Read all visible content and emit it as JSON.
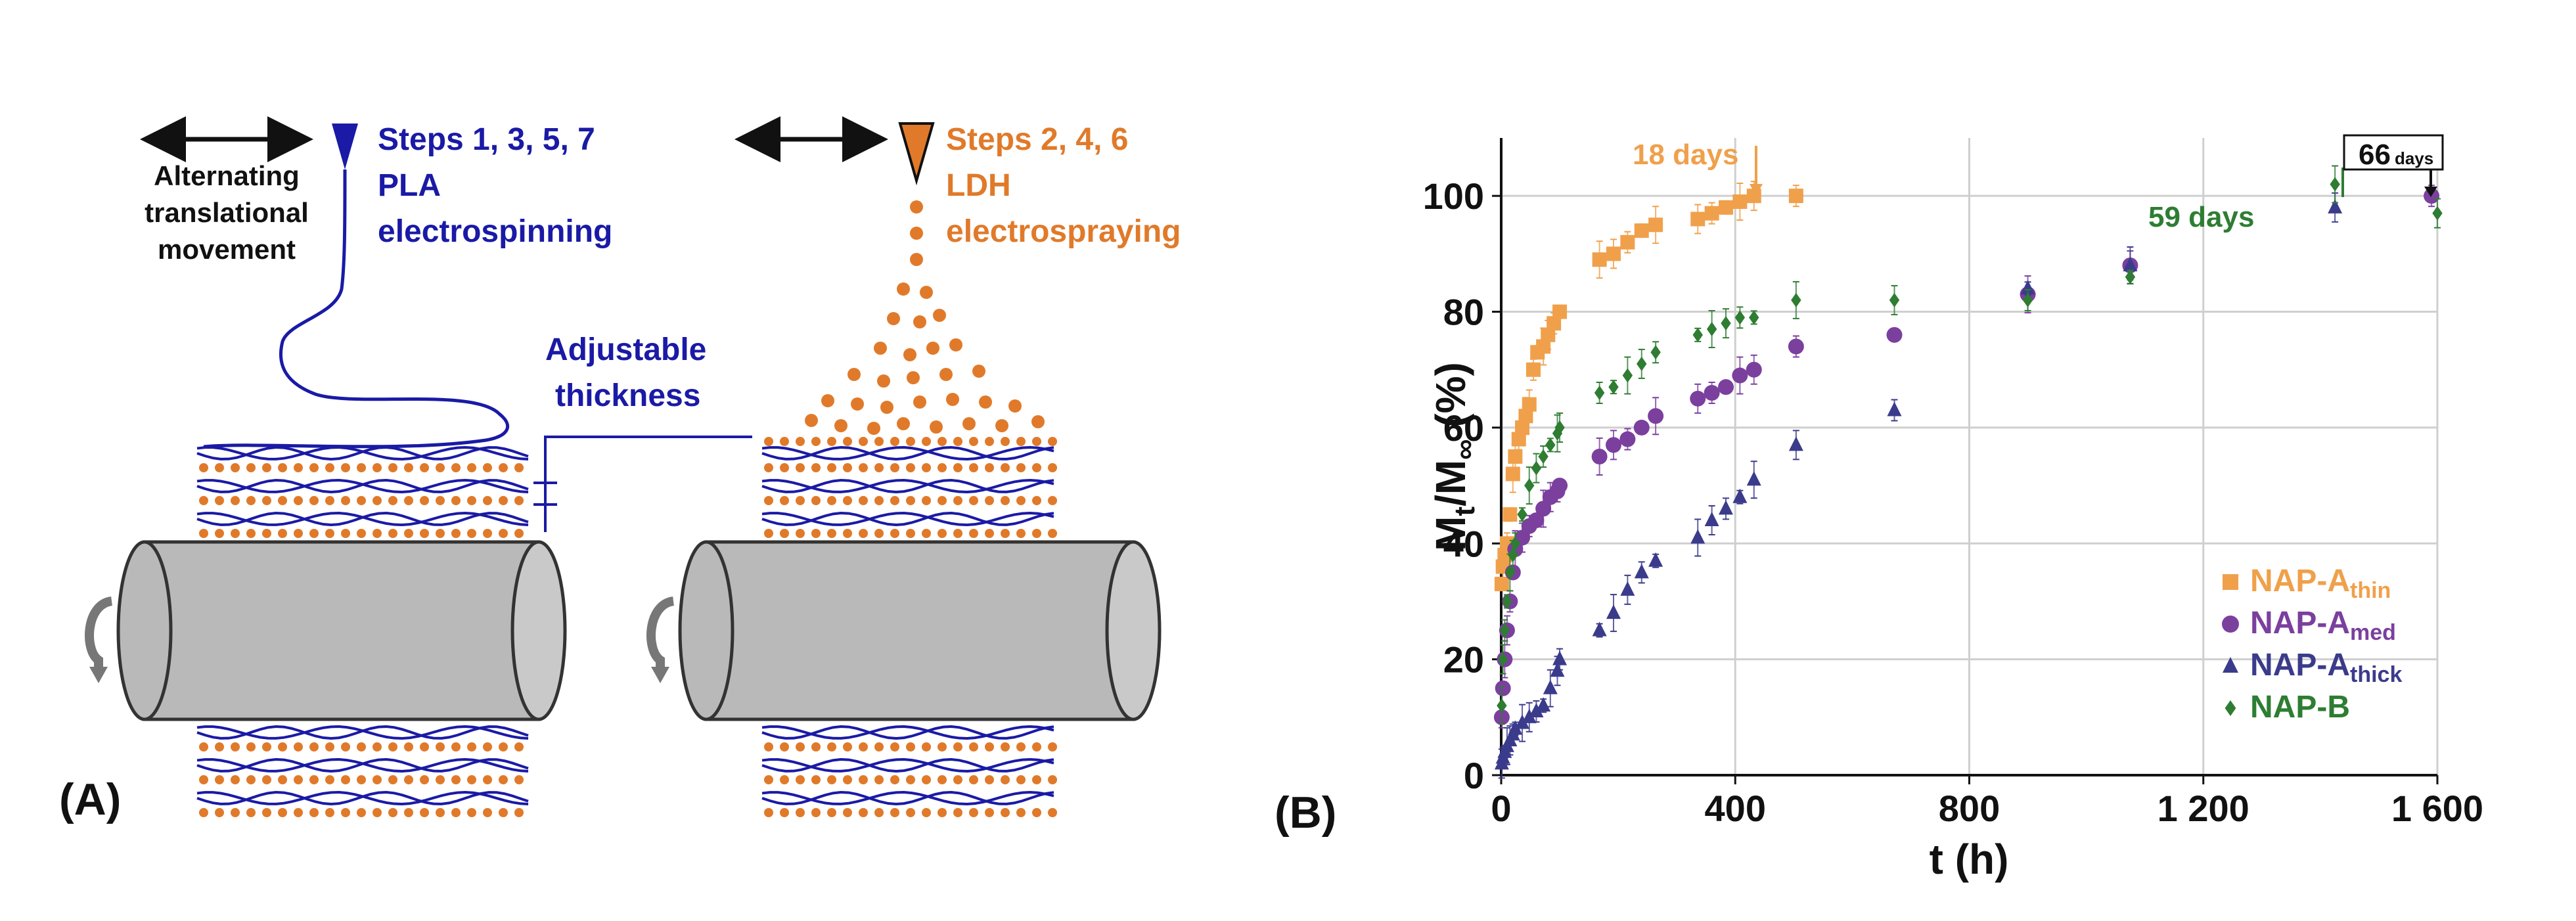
{
  "panel_a": {
    "label": "(A)",
    "movement_line1": "Alternating",
    "movement_line2": "translational",
    "movement_line3": "movement",
    "pla_line1": "Steps 1, 3, 5, 7",
    "pla_line2": "PLA",
    "pla_line3": "electrospinning",
    "ldh_line1": "Steps 2, 4, 6",
    "ldh_line2": "LDH",
    "ldh_line3": "electrospraying",
    "thickness_line1": "Adjustable",
    "thickness_line2": "thickness",
    "colors": {
      "pla": "#1a1aa6",
      "ldh": "#e07a2a",
      "drum": "#b9b9b9"
    }
  },
  "panel_b": {
    "label": "(B)",
    "annotations": {
      "a18": "18 days",
      "a59": "59 days",
      "a66": "66",
      "a66_unit": "days"
    }
  },
  "chart_data": {
    "type": "scatter",
    "xlabel": "t (h)",
    "ylabel_main": "M",
    "ylabel_sub_t": "t",
    "ylabel_slash": "/M",
    "ylabel_sub_inf": "∞",
    "ylabel_pct": " (%)",
    "xlim": [
      0,
      1600
    ],
    "ylim": [
      0,
      110
    ],
    "grid": true,
    "xticks": [
      0,
      400,
      800,
      1200,
      1600
    ],
    "xtick_labels": [
      "0",
      "400",
      "800",
      "1 200",
      "1 600"
    ],
    "yticks": [
      0,
      20,
      40,
      60,
      80,
      100
    ],
    "ytick_labels": [
      "0",
      "20",
      "40",
      "60",
      "80",
      "100"
    ],
    "legend_position": "bottom-right",
    "series": [
      {
        "name": "NAP-A",
        "subscript": "thin",
        "marker": "square",
        "color": "#f0a04b",
        "x": [
          1,
          3,
          6,
          10,
          15,
          20,
          24,
          30,
          36,
          42,
          48,
          55,
          62,
          72,
          80,
          90,
          100,
          168,
          192,
          216,
          240,
          264,
          336,
          360,
          384,
          408,
          432,
          504
        ],
        "y": [
          33,
          36,
          38,
          40,
          45,
          52,
          55,
          58,
          60,
          62,
          64,
          70,
          73,
          74,
          76,
          78,
          80,
          89,
          90,
          92,
          94,
          95,
          96,
          97,
          98,
          99,
          100,
          100
        ]
      },
      {
        "name": "NAP-A",
        "subscript": "med",
        "marker": "circle",
        "color": "#7b3f9e",
        "x": [
          1,
          3,
          6,
          10,
          15,
          20,
          24,
          36,
          48,
          60,
          72,
          84,
          96,
          100,
          168,
          192,
          216,
          240,
          264,
          336,
          360,
          384,
          408,
          432,
          504,
          672,
          900,
          1075,
          1590
        ],
        "y": [
          10,
          15,
          20,
          25,
          30,
          35,
          39,
          41,
          43,
          44,
          46,
          48,
          49,
          50,
          55,
          57,
          58,
          60,
          62,
          65,
          66,
          67,
          69,
          70,
          74,
          76,
          83,
          88,
          100
        ]
      },
      {
        "name": "NAP-A",
        "subscript": "thick",
        "marker": "triangle",
        "color": "#3b3b8c",
        "x": [
          1,
          3,
          6,
          10,
          15,
          20,
          24,
          36,
          48,
          60,
          72,
          84,
          96,
          100,
          168,
          192,
          216,
          240,
          264,
          336,
          360,
          384,
          408,
          432,
          504,
          672,
          900,
          1075,
          1425
        ],
        "y": [
          2,
          3,
          4,
          5,
          6,
          7,
          8,
          9,
          10,
          11,
          12,
          15,
          18,
          20,
          25,
          28,
          32,
          35,
          37,
          41,
          44,
          46,
          48,
          51,
          57,
          63,
          84,
          88,
          98
        ]
      },
      {
        "name": "NAP-B",
        "subscript": "",
        "marker": "diamond",
        "color": "#2e7d32",
        "x": [
          1,
          3,
          6,
          10,
          15,
          20,
          24,
          36,
          48,
          60,
          72,
          84,
          96,
          100,
          168,
          192,
          216,
          240,
          264,
          336,
          360,
          384,
          408,
          432,
          504,
          672,
          900,
          1075,
          1425,
          1600
        ],
        "y": [
          12,
          20,
          25,
          30,
          35,
          38,
          40,
          45,
          50,
          53,
          55,
          57,
          59,
          60,
          66,
          67,
          69,
          71,
          73,
          76,
          77,
          78,
          79,
          79,
          82,
          82,
          82,
          86,
          102,
          97
        ]
      }
    ]
  }
}
